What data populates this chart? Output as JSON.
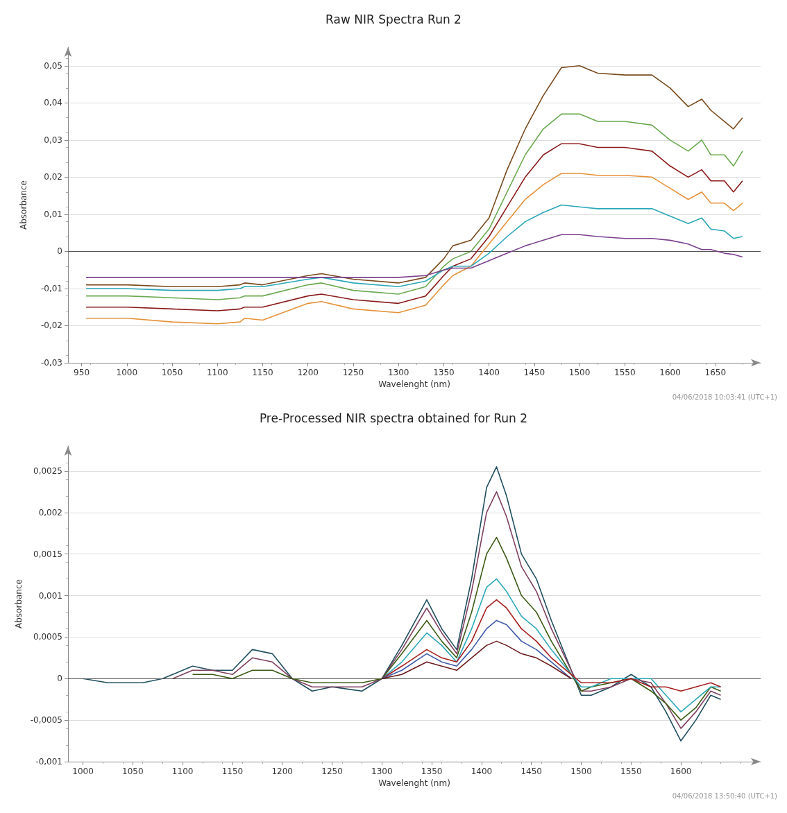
{
  "chart_data": [
    {
      "type": "line",
      "title": "Raw NIR Spectra Run 2",
      "xlabel": "Wavelenght (nm)",
      "ylabel": "Absorbance",
      "annotations": [
        "04/06/2018 10:03:41 (UTC+1)"
      ],
      "x": [
        955,
        1000,
        1050,
        1100,
        1125,
        1130,
        1150,
        1200,
        1215,
        1250,
        1300,
        1330,
        1350,
        1360,
        1380,
        1400,
        1420,
        1440,
        1460,
        1480,
        1500,
        1520,
        1550,
        1580,
        1600,
        1620,
        1635,
        1645,
        1660,
        1670,
        1680
      ],
      "series": [
        {
          "color": "#7b4a1e",
          "values": [
            -0.009,
            -0.009,
            -0.0095,
            -0.0095,
            -0.009,
            -0.0085,
            -0.009,
            -0.0065,
            -0.006,
            -0.0075,
            -0.0085,
            -0.007,
            -0.002,
            0.0015,
            0.003,
            0.009,
            0.022,
            0.033,
            0.042,
            0.0495,
            0.05,
            0.048,
            0.0475,
            0.0475,
            0.044,
            0.039,
            0.041,
            0.038,
            0.035,
            0.033,
            0.036
          ]
        },
        {
          "color": "#6aa84f",
          "values": [
            -0.012,
            -0.012,
            -0.0125,
            -0.013,
            -0.0125,
            -0.012,
            -0.012,
            -0.009,
            -0.0085,
            -0.0105,
            -0.0115,
            -0.0095,
            -0.004,
            -0.002,
            0,
            0.006,
            0.016,
            0.026,
            0.033,
            0.037,
            0.037,
            0.035,
            0.035,
            0.034,
            0.03,
            0.027,
            0.03,
            0.026,
            0.026,
            0.023,
            0.027
          ]
        },
        {
          "color": "#8b1a1a",
          "values": [
            -0.015,
            -0.015,
            -0.0155,
            -0.016,
            -0.0155,
            -0.015,
            -0.015,
            -0.012,
            -0.0115,
            -0.013,
            -0.014,
            -0.012,
            -0.0065,
            -0.004,
            -0.002,
            0.004,
            0.012,
            0.02,
            0.026,
            0.029,
            0.029,
            0.028,
            0.028,
            0.027,
            0.023,
            0.02,
            0.022,
            0.019,
            0.019,
            0.016,
            0.019
          ]
        },
        {
          "color": "#e69138",
          "values": [
            -0.018,
            -0.018,
            -0.019,
            -0.0195,
            -0.019,
            -0.018,
            -0.0185,
            -0.014,
            -0.0135,
            -0.0155,
            -0.0165,
            -0.0145,
            -0.009,
            -0.0065,
            -0.004,
            0.002,
            0.008,
            0.014,
            0.018,
            0.021,
            0.021,
            0.0205,
            0.0205,
            0.02,
            0.017,
            0.014,
            0.016,
            0.013,
            0.013,
            0.011,
            0.013
          ]
        },
        {
          "color": "#2aa7b8",
          "values": [
            -0.01,
            -0.01,
            -0.0105,
            -0.0105,
            -0.01,
            -0.0095,
            -0.0095,
            -0.0075,
            -0.007,
            -0.0085,
            -0.0095,
            -0.008,
            -0.005,
            -0.004,
            -0.004,
            -0.0005,
            0.004,
            0.008,
            0.0105,
            0.0125,
            0.012,
            0.0115,
            0.0115,
            0.0115,
            0.0095,
            0.0075,
            0.009,
            0.006,
            0.0055,
            0.0035,
            0.004
          ]
        },
        {
          "color": "#7b3f8c",
          "values": [
            -0.007,
            -0.007,
            -0.007,
            -0.007,
            -0.007,
            -0.007,
            -0.007,
            -0.007,
            -0.007,
            -0.007,
            -0.007,
            -0.0065,
            -0.005,
            -0.0045,
            -0.0045,
            -0.0025,
            -0.0005,
            0.0015,
            0.003,
            0.0045,
            0.0045,
            0.004,
            0.0035,
            0.0035,
            0.003,
            0.002,
            0.0005,
            0.0005,
            -0.0005,
            -0.0008,
            -0.0015
          ]
        }
      ],
      "xlim": [
        935,
        1700
      ],
      "xticks": [
        950,
        1000,
        1050,
        1100,
        1150,
        1200,
        1250,
        1300,
        1350,
        1400,
        1450,
        1500,
        1550,
        1600,
        1650
      ],
      "ylim": [
        -0.03,
        0.055
      ],
      "yticks": [
        {
          "value": -0.03,
          "label": "-0,03"
        },
        {
          "value": -0.02,
          "label": "-0,02"
        },
        {
          "value": -0.01,
          "label": "-0,01"
        },
        0,
        {
          "value": 0.01,
          "label": "0,01"
        },
        {
          "value": 0.02,
          "label": "0,02"
        },
        {
          "value": 0.03,
          "label": "0,03"
        },
        {
          "value": 0.04,
          "label": "0,04"
        },
        {
          "value": 0.05,
          "label": "0,05"
        }
      ],
      "ref_lines": [
        {
          "axis": "y",
          "value": 0,
          "color": "#555555"
        }
      ],
      "grid": "y"
    },
    {
      "type": "line",
      "title": "Pre-Processed NIR spectra obtained for Run 2",
      "xlabel": "Wavelenght (nm)",
      "ylabel": "Absorbance",
      "annotations": [
        "04/06/2018 13:50:40 (UTC+1)"
      ],
      "x": [
        1000,
        1025,
        1050,
        1060,
        1080,
        1090,
        1110,
        1130,
        1150,
        1170,
        1190,
        1210,
        1230,
        1250,
        1280,
        1300,
        1320,
        1345,
        1360,
        1375,
        1390,
        1405,
        1415,
        1425,
        1440,
        1455,
        1470,
        1490,
        1500,
        1510,
        1530,
        1550,
        1570,
        1585,
        1600,
        1615,
        1630,
        1640
      ],
      "series": [
        {
          "color": "#1f4e5f",
          "values": [
            0,
            -5e-05,
            -5e-05,
            -5e-05,
            0,
            5e-05,
            0.00015,
            0.0001,
            0.0001,
            0.00035,
            0.0003,
            0,
            -0.00015,
            -0.0001,
            -0.00015,
            0,
            0.0004,
            0.00095,
            0.0006,
            0.00035,
            0.0012,
            0.0023,
            0.00255,
            0.0022,
            0.0015,
            0.0012,
            0.0007,
            0.0001,
            -0.0002,
            -0.0002,
            -0.0001,
            5e-05,
            -0.0001,
            -0.0004,
            -0.00075,
            -0.0005,
            -0.0002,
            -0.00025
          ]
        },
        {
          "color": "#7f3f5f",
          "values": [
            null,
            null,
            null,
            null,
            null,
            0,
            0.0001,
            0.0001,
            5e-05,
            0.00025,
            0.0002,
            0,
            -0.0001,
            -0.0001,
            -0.0001,
            0,
            0.00035,
            0.00085,
            0.00055,
            0.0003,
            0.00105,
            0.002,
            0.00225,
            0.00195,
            0.00135,
            0.00105,
            0.0006,
            0.0001,
            -0.00015,
            -0.00015,
            -0.0001,
            0,
            -5e-05,
            -0.0003,
            -0.0006,
            -0.0004,
            -0.00015,
            -0.0002
          ]
        },
        {
          "color": "#3c5a14",
          "values": [
            null,
            null,
            null,
            null,
            null,
            null,
            5e-05,
            5e-05,
            0,
            0.0001,
            0.0001,
            0,
            -5e-05,
            -5e-05,
            -5e-05,
            0,
            0.0003,
            0.0007,
            0.00045,
            0.00025,
            0.0008,
            0.0015,
            0.0017,
            0.00145,
            0.001,
            0.0008,
            0.00045,
            5e-05,
            -0.00015,
            -0.0001,
            -5e-05,
            0,
            -0.00015,
            -0.0003,
            -0.0005,
            -0.00035,
            -0.0001,
            -0.00015
          ]
        },
        {
          "color": "#2aa7b8",
          "values": [
            null,
            null,
            null,
            null,
            null,
            null,
            null,
            null,
            null,
            null,
            null,
            null,
            null,
            null,
            null,
            0,
            0.0002,
            0.00055,
            0.0004,
            0.0002,
            0.0006,
            0.0011,
            0.0012,
            0.00105,
            0.00075,
            0.0006,
            0.00035,
            5e-05,
            -0.0001,
            -0.0001,
            0,
            0,
            0,
            -0.0002,
            -0.0004,
            -0.00025,
            -0.0001,
            -0.0001
          ]
        },
        {
          "color": "#a61c1c",
          "values": [
            null,
            null,
            null,
            null,
            null,
            null,
            null,
            null,
            null,
            null,
            null,
            null,
            null,
            null,
            null,
            0,
            0.00015,
            0.00035,
            0.00025,
            0.0002,
            0.00045,
            0.00085,
            0.00095,
            0.00085,
            0.0006,
            0.00045,
            0.00025,
            5e-05,
            -5e-05,
            -5e-05,
            -5e-05,
            0,
            -0.0001,
            -0.0001,
            -0.00015,
            -0.0001,
            -5e-05,
            -0.0001
          ]
        },
        {
          "color": "#3d5aa8",
          "values": [
            null,
            null,
            null,
            null,
            null,
            null,
            null,
            null,
            null,
            null,
            null,
            null,
            null,
            null,
            null,
            0,
            0.0001,
            0.0003,
            0.0002,
            0.00015,
            0.00035,
            0.0006,
            0.0007,
            0.00065,
            0.00045,
            0.00035,
            0.0002,
            0,
            null,
            null,
            null,
            null,
            null,
            null,
            null,
            null,
            null,
            null
          ]
        },
        {
          "color": "#6b1a1a",
          "values": [
            null,
            null,
            null,
            null,
            null,
            null,
            null,
            null,
            null,
            null,
            null,
            null,
            null,
            null,
            null,
            0,
            5e-05,
            0.0002,
            0.00015,
            0.0001,
            0.00025,
            0.0004,
            0.00045,
            0.0004,
            0.0003,
            0.00025,
            0.00015,
            0,
            null,
            null,
            null,
            null,
            null,
            null,
            null,
            null,
            null,
            null
          ]
        }
      ],
      "xlim": [
        985,
        1680
      ],
      "xticks": [
        1000,
        1050,
        1100,
        1150,
        1200,
        1250,
        1300,
        1350,
        1400,
        1450,
        1500,
        1550,
        1600
      ],
      "ylim": [
        -0.001,
        0.0028
      ],
      "yticks": [
        {
          "value": -0.001,
          "label": "-0,001"
        },
        {
          "value": -0.0005,
          "label": "-0,0005"
        },
        0,
        {
          "value": 0.0005,
          "label": "0,0005"
        },
        {
          "value": 0.001,
          "label": "0,001"
        },
        {
          "value": 0.0015,
          "label": "0,0015"
        },
        {
          "value": 0.002,
          "label": "0,002"
        },
        {
          "value": 0.0025,
          "label": "0,0025"
        }
      ],
      "ref_lines": [
        {
          "axis": "y",
          "value": 0,
          "color": "#555555"
        }
      ],
      "grid": "y"
    }
  ]
}
